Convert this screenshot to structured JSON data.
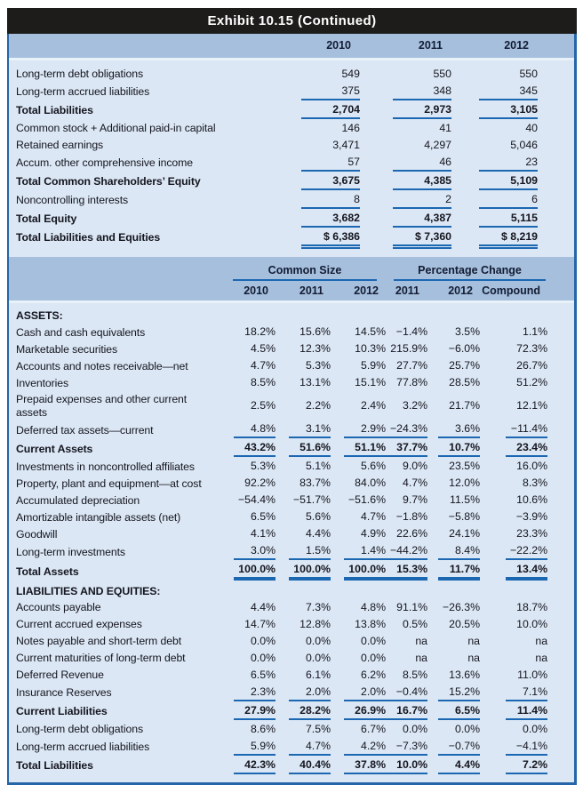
{
  "title": "Exhibit 10.15 (Continued)",
  "colors": {
    "title_bg": "#1d1c1a",
    "title_text": "#ffffff",
    "header_band": "#a5bfdd",
    "body_bg": "#dbe7f4",
    "frame_border": "#2565a8",
    "rule_accent": "#1b67b2",
    "text": "#14151f"
  },
  "top_table": {
    "years": [
      "2010",
      "2011",
      "2012"
    ],
    "rows": [
      {
        "label": "Long-term debt obligations",
        "values": [
          "549",
          "550",
          "550"
        ]
      },
      {
        "label": "Long-term accrued liabilities",
        "values": [
          "375",
          "348",
          "345"
        ],
        "rule": "single"
      },
      {
        "label": "Total Liabilities",
        "bold": true,
        "values": [
          "2,704",
          "2,973",
          "3,105"
        ],
        "rule": "single"
      },
      {
        "label": "Common stock + Additional paid-in capital",
        "values": [
          "146",
          "41",
          "40"
        ]
      },
      {
        "label": "Retained earnings",
        "values": [
          "3,471",
          "4,297",
          "5,046"
        ]
      },
      {
        "label": "Accum. other comprehensive income",
        "values": [
          "57",
          "46",
          "23"
        ],
        "rule": "single"
      },
      {
        "label": "Total Common Shareholders’ Equity",
        "bold": true,
        "values": [
          "3,675",
          "4,385",
          "5,109"
        ],
        "rule": "single"
      },
      {
        "label": "Noncontrolling interests",
        "values": [
          "8",
          "2",
          "6"
        ],
        "rule": "single"
      },
      {
        "label": "Total Equity",
        "bold": true,
        "values": [
          "3,682",
          "4,387",
          "5,115"
        ],
        "rule": "single"
      },
      {
        "label": "Total Liabilities and Equities",
        "bold": true,
        "values": [
          "$ 6,386",
          "$ 7,360",
          "$ 8,219"
        ],
        "rule": "double"
      }
    ]
  },
  "main_table": {
    "groups": [
      {
        "label": "Common Size"
      },
      {
        "label": "Percentage Change"
      }
    ],
    "col_headers": [
      "2010",
      "2011",
      "2012",
      "2011",
      "2012",
      "Compound"
    ],
    "rows": [
      {
        "label": "ASSETS:",
        "section": true
      },
      {
        "label": "Cash and cash equivalents",
        "values": [
          "18.2%",
          "15.6%",
          "14.5%",
          "−1.4%",
          "3.5%",
          "1.1%"
        ]
      },
      {
        "label": "Marketable securities",
        "values": [
          "4.5%",
          "12.3%",
          "10.3%",
          "215.9%",
          "−6.0%",
          "72.3%"
        ]
      },
      {
        "label": "Accounts and notes receivable—net",
        "values": [
          "4.7%",
          "5.3%",
          "5.9%",
          "27.7%",
          "25.7%",
          "26.7%"
        ]
      },
      {
        "label": "Inventories",
        "values": [
          "8.5%",
          "13.1%",
          "15.1%",
          "77.8%",
          "28.5%",
          "51.2%"
        ]
      },
      {
        "label": "Prepaid expenses and other current assets",
        "values": [
          "2.5%",
          "2.2%",
          "2.4%",
          "3.2%",
          "21.7%",
          "12.1%"
        ]
      },
      {
        "label": "Deferred tax assets—current",
        "values": [
          "4.8%",
          "3.1%",
          "2.9%",
          "−24.3%",
          "3.6%",
          "−11.4%"
        ],
        "rule": "single"
      },
      {
        "label": "Current Assets",
        "bold": true,
        "values": [
          "43.2%",
          "51.6%",
          "51.1%",
          "37.7%",
          "10.7%",
          "23.4%"
        ],
        "rule": "single"
      },
      {
        "label": "Investments in noncontrolled affiliates",
        "values": [
          "5.3%",
          "5.1%",
          "5.6%",
          "9.0%",
          "23.5%",
          "16.0%"
        ]
      },
      {
        "label": "Property, plant and equipment—at cost",
        "values": [
          "92.2%",
          "83.7%",
          "84.0%",
          "4.7%",
          "12.0%",
          "8.3%"
        ]
      },
      {
        "label": "Accumulated depreciation",
        "values": [
          "−54.4%",
          "−51.7%",
          "−51.6%",
          "9.7%",
          "11.5%",
          "10.6%"
        ]
      },
      {
        "label": "Amortizable intangible assets (net)",
        "values": [
          "6.5%",
          "5.6%",
          "4.7%",
          "−1.8%",
          "−5.8%",
          "−3.9%"
        ]
      },
      {
        "label": "Goodwill",
        "values": [
          "4.1%",
          "4.4%",
          "4.9%",
          "22.6%",
          "24.1%",
          "23.3%"
        ]
      },
      {
        "label": "Long-term investments",
        "values": [
          "3.0%",
          "1.5%",
          "1.4%",
          "−44.2%",
          "8.4%",
          "−22.2%"
        ],
        "rule": "single"
      },
      {
        "label": "Total Assets",
        "bold": true,
        "values": [
          "100.0%",
          "100.0%",
          "100.0%",
          "15.3%",
          "11.7%",
          "13.4%"
        ],
        "rule": "thick"
      },
      {
        "label": "LIABILITIES AND EQUITIES:",
        "section": true
      },
      {
        "label": "Accounts payable",
        "values": [
          "4.4%",
          "7.3%",
          "4.8%",
          "91.1%",
          "−26.3%",
          "18.7%"
        ]
      },
      {
        "label": "Current accrued expenses",
        "values": [
          "14.7%",
          "12.8%",
          "13.8%",
          "0.5%",
          "20.5%",
          "10.0%"
        ]
      },
      {
        "label": "Notes payable and short-term debt",
        "values": [
          "0.0%",
          "0.0%",
          "0.0%",
          "na",
          "na",
          "na"
        ]
      },
      {
        "label": "Current maturities of long-term debt",
        "values": [
          "0.0%",
          "0.0%",
          "0.0%",
          "na",
          "na",
          "na"
        ]
      },
      {
        "label": "Deferred Revenue",
        "values": [
          "6.5%",
          "6.1%",
          "6.2%",
          "8.5%",
          "13.6%",
          "11.0%"
        ]
      },
      {
        "label": "Insurance Reserves",
        "values": [
          "2.3%",
          "2.0%",
          "2.0%",
          "−0.4%",
          "15.2%",
          "7.1%"
        ],
        "rule": "single"
      },
      {
        "label": "Current Liabilities",
        "bold": true,
        "values": [
          "27.9%",
          "28.2%",
          "26.9%",
          "16.7%",
          "6.5%",
          "11.4%"
        ],
        "rule": "single"
      },
      {
        "label": "Long-term debt obligations",
        "values": [
          "8.6%",
          "7.5%",
          "6.7%",
          "0.0%",
          "0.0%",
          "0.0%"
        ]
      },
      {
        "label": "Long-term accrued liabilities",
        "values": [
          "5.9%",
          "4.7%",
          "4.2%",
          "−7.3%",
          "−0.7%",
          "−4.1%"
        ],
        "rule": "single"
      },
      {
        "label": "Total Liabilities",
        "bold": true,
        "values": [
          "42.3%",
          "40.4%",
          "37.8%",
          "10.0%",
          "4.4%",
          "7.2%"
        ],
        "rule": "single"
      }
    ]
  }
}
